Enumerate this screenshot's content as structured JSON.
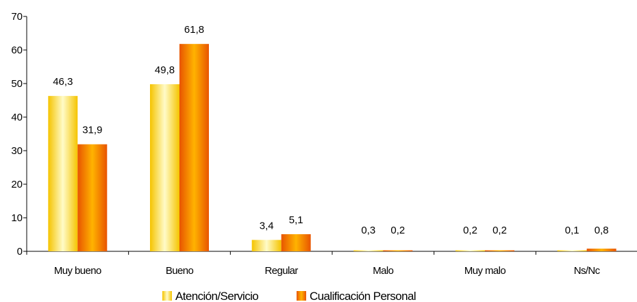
{
  "chart_data": {
    "type": "bar",
    "categories": [
      "Muy bueno",
      "Bueno",
      "Regular",
      "Malo",
      "Muy malo",
      "Ns/Nc"
    ],
    "series": [
      {
        "name": "Atención/Servicio",
        "values": [
          46.3,
          49.8,
          3.4,
          0.3,
          0.2,
          0.1
        ],
        "labels": [
          "46,3",
          "49,8",
          "3,4",
          "0,3",
          "0,2",
          "0,1"
        ],
        "color_light": "#fffbc8",
        "color_dark": "#f5c400"
      },
      {
        "name": "Cualificación Personal",
        "values": [
          31.9,
          61.8,
          5.1,
          0.2,
          0.2,
          0.8
        ],
        "labels": [
          "31,9",
          "61,8",
          "5,1",
          "0,2",
          "0,2",
          "0,8"
        ],
        "color_light": "#ffb300",
        "color_dark": "#e85400"
      }
    ],
    "ylim": [
      0,
      70
    ],
    "yticks": [
      0,
      10,
      20,
      30,
      40,
      50,
      60,
      70
    ],
    "grid": false,
    "legend": "bottom"
  }
}
